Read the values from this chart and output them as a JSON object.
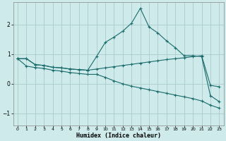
{
  "xlabel": "Humidex (Indice chaleur)",
  "background_color": "#ceeaea",
  "grid_color": "#a8cccc",
  "line_color": "#1a6b6b",
  "xlim": [
    -0.5,
    23.5
  ],
  "ylim": [
    -1.4,
    2.75
  ],
  "xticks": [
    0,
    1,
    2,
    3,
    4,
    5,
    6,
    7,
    8,
    9,
    10,
    11,
    12,
    13,
    14,
    15,
    16,
    17,
    18,
    19,
    20,
    21,
    22,
    23
  ],
  "yticks": [
    -1,
    0,
    1,
    2
  ],
  "line1_x": [
    0,
    1,
    2,
    3,
    4,
    5,
    6,
    7,
    8,
    9,
    10,
    11,
    12,
    13,
    14,
    15,
    16,
    17,
    18,
    19,
    20,
    21,
    22,
    23
  ],
  "line1_y": [
    0.85,
    0.85,
    0.65,
    0.62,
    0.56,
    0.54,
    0.5,
    0.48,
    0.46,
    0.92,
    1.4,
    1.58,
    1.78,
    2.05,
    2.55,
    1.92,
    1.72,
    1.45,
    1.22,
    0.95,
    0.95,
    0.92,
    -0.4,
    -0.6
  ],
  "line2_x": [
    0,
    1,
    2,
    3,
    4,
    5,
    6,
    7,
    8,
    9,
    10,
    11,
    12,
    13,
    14,
    15,
    16,
    17,
    18,
    19,
    20,
    21,
    22,
    23
  ],
  "line2_y": [
    0.85,
    0.85,
    0.65,
    0.62,
    0.56,
    0.54,
    0.5,
    0.48,
    0.46,
    0.5,
    0.54,
    0.58,
    0.62,
    0.66,
    0.7,
    0.74,
    0.78,
    0.82,
    0.85,
    0.88,
    0.92,
    0.95,
    -0.05,
    -0.1
  ],
  "line3_x": [
    0,
    1,
    2,
    3,
    4,
    5,
    6,
    7,
    8,
    9,
    10,
    11,
    12,
    13,
    14,
    15,
    16,
    17,
    18,
    19,
    20,
    21,
    22,
    23
  ],
  "line3_y": [
    0.85,
    0.6,
    0.55,
    0.52,
    0.46,
    0.43,
    0.38,
    0.35,
    0.32,
    0.32,
    0.22,
    0.1,
    0.0,
    -0.08,
    -0.14,
    -0.2,
    -0.26,
    -0.32,
    -0.38,
    -0.44,
    -0.5,
    -0.58,
    -0.72,
    -0.82
  ]
}
